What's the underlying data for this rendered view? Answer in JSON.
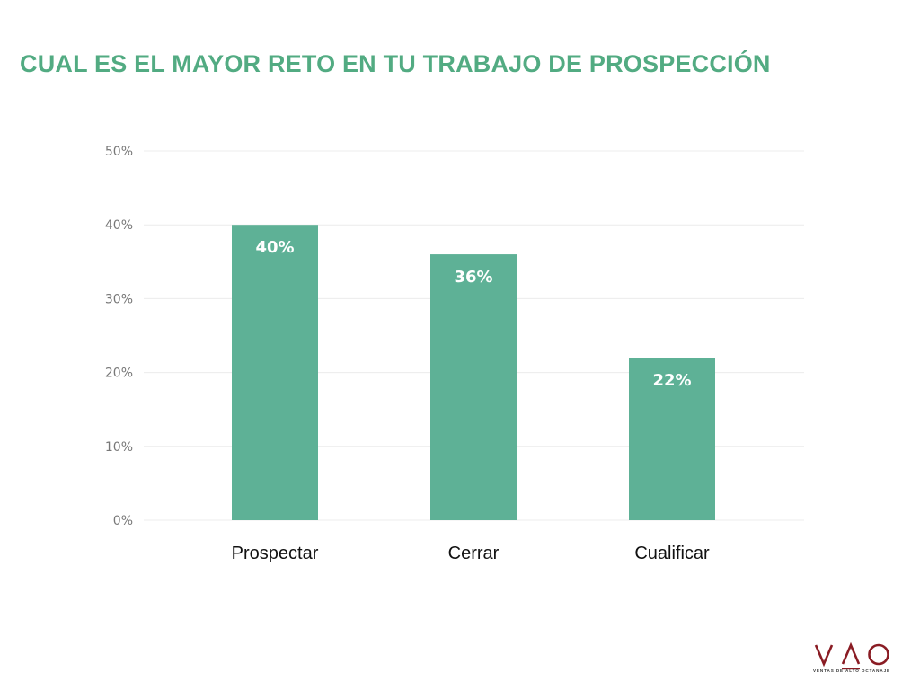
{
  "colors": {
    "title": "#52ab82",
    "bar": "#5eb196",
    "bar_label": "#ffffff",
    "tick_label": "#777777",
    "category_label": "#111111",
    "grid": "#ececec",
    "logo": "#8a1c24"
  },
  "chart_data": {
    "type": "bar",
    "title": "CUAL ES EL MAYOR RETO EN TU TRABAJO DE PROSPECCIÓN",
    "categories": [
      "Prospectar",
      "Cerrar",
      "Cualificar"
    ],
    "values": [
      40,
      36,
      22
    ],
    "data_labels": [
      "40%",
      "36%",
      "22%"
    ],
    "unit": "%",
    "xlabel": "",
    "ylabel": "",
    "ylim": [
      0,
      50
    ],
    "y_ticks": [
      0,
      10,
      20,
      30,
      40,
      50
    ],
    "y_tick_labels": [
      "0%",
      "10%",
      "20%",
      "30%",
      "40%",
      "50%"
    ],
    "grid": true,
    "legend": "none"
  },
  "logo": {
    "text": "VAO",
    "tagline": "VENTAS DE ALTO OCTANAJE"
  }
}
